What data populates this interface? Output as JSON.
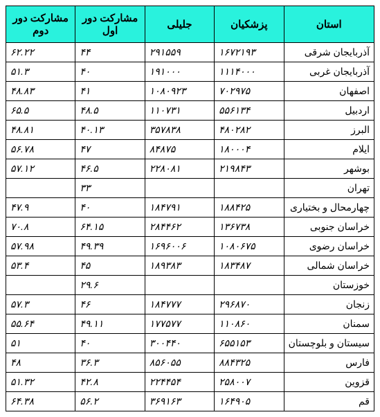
{
  "table": {
    "header_bg": "#29f2dd",
    "border_color": "#000000",
    "columns": [
      {
        "key": "province",
        "label": "استان"
      },
      {
        "key": "pezeshkian",
        "label": "پزشکیان"
      },
      {
        "key": "jalili",
        "label": "جلیلی"
      },
      {
        "key": "round1",
        "label": "مشارکت دور اول"
      },
      {
        "key": "round2",
        "label": "مشارکت دور دوم"
      }
    ],
    "rows": [
      {
        "province": "آذربایجان شرقی",
        "pezeshkian": "۱۶۷۲۱۹۳",
        "jalili": "۲۹۱۵۵۹",
        "round1": "۴۴",
        "round2": "۶۲.۲۲"
      },
      {
        "province": "آذربایجان غربی",
        "pezeshkian": "۱۱۱۴۰۰۰",
        "jalili": "۱۹۱۰۰۰",
        "round1": "۴۰",
        "round2": "۵۱.۳"
      },
      {
        "province": "اصفهان",
        "pezeshkian": "۷۰۲۹۷۵",
        "jalili": "۱۰۸۰۹۲۳",
        "round1": "۴۱",
        "round2": "۴۸.۸۳"
      },
      {
        "province": "اردبیل",
        "pezeshkian": "۵۵۶۱۳۴",
        "jalili": "۱۱۰۷۳۱",
        "round1": "۴۸.۵",
        "round2": "۶۵.۵"
      },
      {
        "province": "البرز",
        "pezeshkian": "۴۸۰۲۸۲",
        "jalili": "۳۵۷۸۳۸",
        "round1": "۴۰.۱۳",
        "round2": "۴۸.۸۱"
      },
      {
        "province": "ایلام",
        "pezeshkian": "۱۸۰۰۰۴",
        "jalili": "۸۴۸۷۵",
        "round1": "۴۷",
        "round2": "۵۶.۷۸"
      },
      {
        "province": "بوشهر",
        "pezeshkian": "۲۱۹۸۴۳",
        "jalili": "۲۲۸۰۸۱",
        "round1": "۴۶.۵",
        "round2": "۵۷.۱۲"
      },
      {
        "province": "تهران",
        "pezeshkian": "",
        "jalili": "",
        "round1": "۳۳",
        "round2": ""
      },
      {
        "province": "چهارمحال و بختیاری",
        "pezeshkian": "۱۸۸۴۲۵",
        "jalili": "۱۸۴۷۹۱",
        "round1": "۴۰",
        "round2": "۴۷.۹"
      },
      {
        "province": "خراسان جنوبی",
        "pezeshkian": "۱۳۶۷۳۸",
        "jalili": "۲۸۴۴۶۲",
        "round1": "۶۴.۱۵",
        "round2": "۷۰.۸"
      },
      {
        "province": "خراسان رضوی",
        "pezeshkian": "۱۰۸۰۶۷۵",
        "jalili": "۱۶۹۶۰۰۶",
        "round1": "۴۹.۳۹",
        "round2": "۵۷.۹۸"
      },
      {
        "province": "خراسان شمالی",
        "pezeshkian": "۱۸۳۴۸۷",
        "jalili": "۱۸۹۳۸۳",
        "round1": "۴۵",
        "round2": "۵۳.۴"
      },
      {
        "province": "خوزستان",
        "pezeshkian": "",
        "jalili": "",
        "round1": "۲۹.۶",
        "round2": ""
      },
      {
        "province": "زنجان",
        "pezeshkian": "۲۹۶۸۷۰",
        "jalili": "۱۸۴۷۷۷",
        "round1": "۴۶",
        "round2": "۵۷.۳"
      },
      {
        "province": "سمنان",
        "pezeshkian": "۱۱۰۸۶۰",
        "jalili": "۱۷۷۵۷۷",
        "round1": "۴۹.۱۱",
        "round2": "۵۵.۶۴"
      },
      {
        "province": "سیستان و بلوچستان",
        "pezeshkian": "۶۵۵۱۵۳",
        "jalili": "۳۰۰۴۴۰",
        "round1": "۴۰",
        "round2": "۵۱"
      },
      {
        "province": "فارس",
        "pezeshkian": "۸۸۴۳۲۵",
        "jalili": "۸۵۶۰۵۵",
        "round1": "۳۶.۳",
        "round2": "۴۸"
      },
      {
        "province": "قزوین",
        "pezeshkian": "۲۵۸۰۰۷",
        "jalili": "۲۲۴۴۵۴",
        "round1": "۴۲.۸",
        "round2": "۵۱.۳۲"
      },
      {
        "province": "قم",
        "pezeshkian": "۱۶۴۹۰۵",
        "jalili": "۳۶۹۱۶۳",
        "round1": "۵۶.۲",
        "round2": "۶۴.۳۸"
      }
    ]
  }
}
